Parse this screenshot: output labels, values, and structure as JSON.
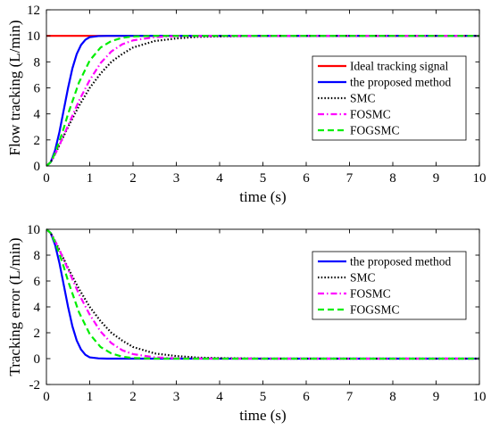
{
  "chart_data": [
    {
      "type": "line",
      "title": "",
      "xlabel": "time (s)",
      "ylabel": "Flow tracking (L/min)",
      "xlim": [
        0,
        10
      ],
      "ylim": [
        0,
        12
      ],
      "xticks": [
        "0",
        "1",
        "2",
        "3",
        "4",
        "5",
        "6",
        "7",
        "8",
        "9",
        "10"
      ],
      "yticks": [
        "0",
        "2",
        "4",
        "6",
        "8",
        "10",
        "12"
      ],
      "legend_position": "right",
      "grid": false,
      "series": [
        {
          "name": "Ideal tracking signal",
          "color": "#ff0000",
          "style": "solid",
          "x": [
            0,
            10
          ],
          "y": [
            10,
            10
          ]
        },
        {
          "name": "the proposed method",
          "color": "#0000ff",
          "style": "solid",
          "x": [
            0,
            0.1,
            0.2,
            0.3,
            0.4,
            0.5,
            0.6,
            0.7,
            0.8,
            0.9,
            1.0,
            1.2,
            1.4,
            1.6,
            2.0,
            10
          ],
          "y": [
            0,
            0.3,
            1.2,
            2.6,
            4.3,
            6.0,
            7.5,
            8.6,
            9.3,
            9.7,
            9.9,
            9.98,
            10,
            10,
            10,
            10
          ]
        },
        {
          "name": "SMC",
          "color": "#000000",
          "style": "dotted",
          "x": [
            0,
            0.1,
            0.2,
            0.3,
            0.5,
            0.75,
            1.0,
            1.25,
            1.5,
            1.75,
            2.0,
            2.5,
            3.0,
            3.5,
            4.0,
            5.0,
            10
          ],
          "y": [
            0,
            0.3,
            0.9,
            1.6,
            3.0,
            4.6,
            6.0,
            7.1,
            8.0,
            8.6,
            9.1,
            9.6,
            9.8,
            9.92,
            9.96,
            10,
            10
          ]
        },
        {
          "name": "FOSMC",
          "color": "#ff00ff",
          "style": "dashdot",
          "x": [
            0,
            0.1,
            0.2,
            0.3,
            0.5,
            0.75,
            1.0,
            1.25,
            1.5,
            1.75,
            2.0,
            2.5,
            3.0,
            4.0,
            10
          ],
          "y": [
            0,
            0.3,
            0.9,
            1.6,
            3.1,
            5.0,
            6.6,
            7.9,
            8.8,
            9.35,
            9.65,
            9.9,
            9.98,
            10,
            10
          ]
        },
        {
          "name": "FOGSMC",
          "color": "#00ee00",
          "style": "dashed",
          "x": [
            0,
            0.1,
            0.2,
            0.3,
            0.4,
            0.5,
            0.75,
            1.0,
            1.25,
            1.5,
            1.75,
            2.0,
            2.5,
            10
          ],
          "y": [
            0,
            0.3,
            1.0,
            1.9,
            2.9,
            4.0,
            6.4,
            8.1,
            9.1,
            9.6,
            9.85,
            9.95,
            10,
            10
          ]
        }
      ]
    },
    {
      "type": "line",
      "title": "",
      "xlabel": "time (s)",
      "ylabel": "Tracking error (L/min)",
      "xlim": [
        0,
        10
      ],
      "ylim": [
        -2,
        10
      ],
      "xticks": [
        "0",
        "1",
        "2",
        "3",
        "4",
        "5",
        "6",
        "7",
        "8",
        "9",
        "10"
      ],
      "yticks": [
        "-2",
        "0",
        "2",
        "4",
        "6",
        "8",
        "10"
      ],
      "legend_position": "right",
      "grid": false,
      "series": [
        {
          "name": "the proposed method",
          "color": "#0000ff",
          "style": "solid",
          "x": [
            0,
            0.1,
            0.2,
            0.3,
            0.4,
            0.5,
            0.6,
            0.7,
            0.8,
            0.9,
            1.0,
            1.2,
            1.4,
            1.6,
            2.0,
            10
          ],
          "y": [
            10,
            9.7,
            8.8,
            7.4,
            5.7,
            4.0,
            2.5,
            1.4,
            0.7,
            0.3,
            0.1,
            0.02,
            0,
            0,
            0,
            0
          ]
        },
        {
          "name": "SMC",
          "color": "#000000",
          "style": "dotted",
          "x": [
            0,
            0.1,
            0.2,
            0.3,
            0.5,
            0.75,
            1.0,
            1.25,
            1.5,
            1.75,
            2.0,
            2.5,
            3.0,
            3.5,
            4.0,
            5.0,
            10
          ],
          "y": [
            10,
            9.7,
            9.1,
            8.4,
            7.0,
            5.4,
            4.0,
            2.9,
            2.0,
            1.4,
            0.9,
            0.4,
            0.2,
            0.08,
            0.04,
            0,
            0
          ]
        },
        {
          "name": "FOSMC",
          "color": "#ff00ff",
          "style": "dashdot",
          "x": [
            0,
            0.1,
            0.2,
            0.3,
            0.5,
            0.75,
            1.0,
            1.25,
            1.5,
            1.75,
            2.0,
            2.5,
            3.0,
            4.0,
            10
          ],
          "y": [
            10,
            9.7,
            9.1,
            8.4,
            6.9,
            5.0,
            3.4,
            2.1,
            1.2,
            0.65,
            0.35,
            0.1,
            0.02,
            0,
            0
          ]
        },
        {
          "name": "FOGSMC",
          "color": "#00ee00",
          "style": "dashed",
          "x": [
            0,
            0.1,
            0.2,
            0.3,
            0.4,
            0.5,
            0.75,
            1.0,
            1.25,
            1.5,
            1.75,
            2.0,
            2.5,
            10
          ],
          "y": [
            10,
            9.7,
            9.0,
            8.1,
            7.1,
            6.0,
            3.6,
            1.9,
            0.9,
            0.4,
            0.15,
            0.05,
            0,
            0
          ]
        }
      ]
    }
  ]
}
